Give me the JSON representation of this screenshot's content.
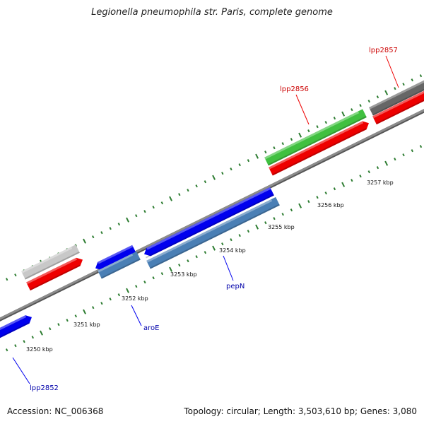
{
  "title": "Legionella pneumophila str. Paris, complete genome",
  "accession": "Accession: NC_006368",
  "summary": "Topology: circular; Length: 3,503,610 bp; Genes: 3,080",
  "colors": {
    "backbone": "#8c8c8c",
    "tick": "#2e7d32",
    "cds_blue": "#0000ee",
    "cds_steel": "#4a7fb5",
    "cds_red": "#ee0000",
    "cds_green": "#33cc33",
    "cds_light_gray": "#c8c8c8",
    "cds_dark_gray": "#666666",
    "label_red": "#cc0000",
    "label_blue": "#0000aa"
  },
  "kbp_labels": [
    "3250 kbp",
    "3251 kbp",
    "3252 kbp",
    "3253 kbp",
    "3254 kbp",
    "3255 kbp",
    "3256 kbp",
    "3257 kbp"
  ],
  "gene_labels": [
    {
      "text": "lpp2852",
      "color": "blue"
    },
    {
      "text": "aroE",
      "color": "blue"
    },
    {
      "text": "pepN",
      "color": "blue"
    },
    {
      "text": "lpp2856",
      "color": "red"
    },
    {
      "text": "lpp2857",
      "color": "red"
    }
  ]
}
